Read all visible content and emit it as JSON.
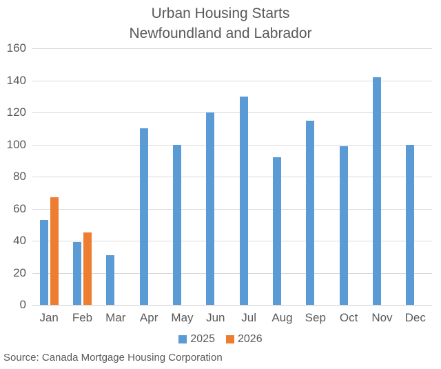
{
  "title": {
    "line1": "Urban Housing Starts",
    "line2": "Newfoundland and Labrador"
  },
  "source": "Source: Canada Mortgage Housing Corporation",
  "legend": [
    {
      "label": "2025",
      "color": "#5B9BD5"
    },
    {
      "label": "2026",
      "color": "#ED7D31"
    }
  ],
  "colors": {
    "series_2025": "#5B9BD5",
    "series_2026": "#ED7D31",
    "gridline": "#D9D9D9",
    "axis_line": "#D0D0D0",
    "text": "#595959"
  },
  "chart_data": {
    "type": "bar",
    "title": "Urban Housing Starts",
    "subtitle": "Newfoundland and Labrador",
    "categories": [
      "Jan",
      "Feb",
      "Mar",
      "Apr",
      "May",
      "Jun",
      "Jul",
      "Aug",
      "Sep",
      "Oct",
      "Nov",
      "Dec"
    ],
    "series": [
      {
        "name": "2025",
        "color": "#5B9BD5",
        "values": [
          53,
          39,
          31,
          110,
          100,
          120,
          130,
          92,
          115,
          99,
          142,
          100
        ]
      },
      {
        "name": "2026",
        "color": "#ED7D31",
        "values": [
          67,
          45,
          null,
          null,
          null,
          null,
          null,
          null,
          null,
          null,
          null,
          null
        ]
      }
    ],
    "xlabel": "",
    "ylabel": "",
    "ylim": [
      0,
      160
    ],
    "ytick_step": 20,
    "grid": true,
    "legend_position": "bottom",
    "annotation": "Source: Canada Mortgage Housing Corporation"
  }
}
